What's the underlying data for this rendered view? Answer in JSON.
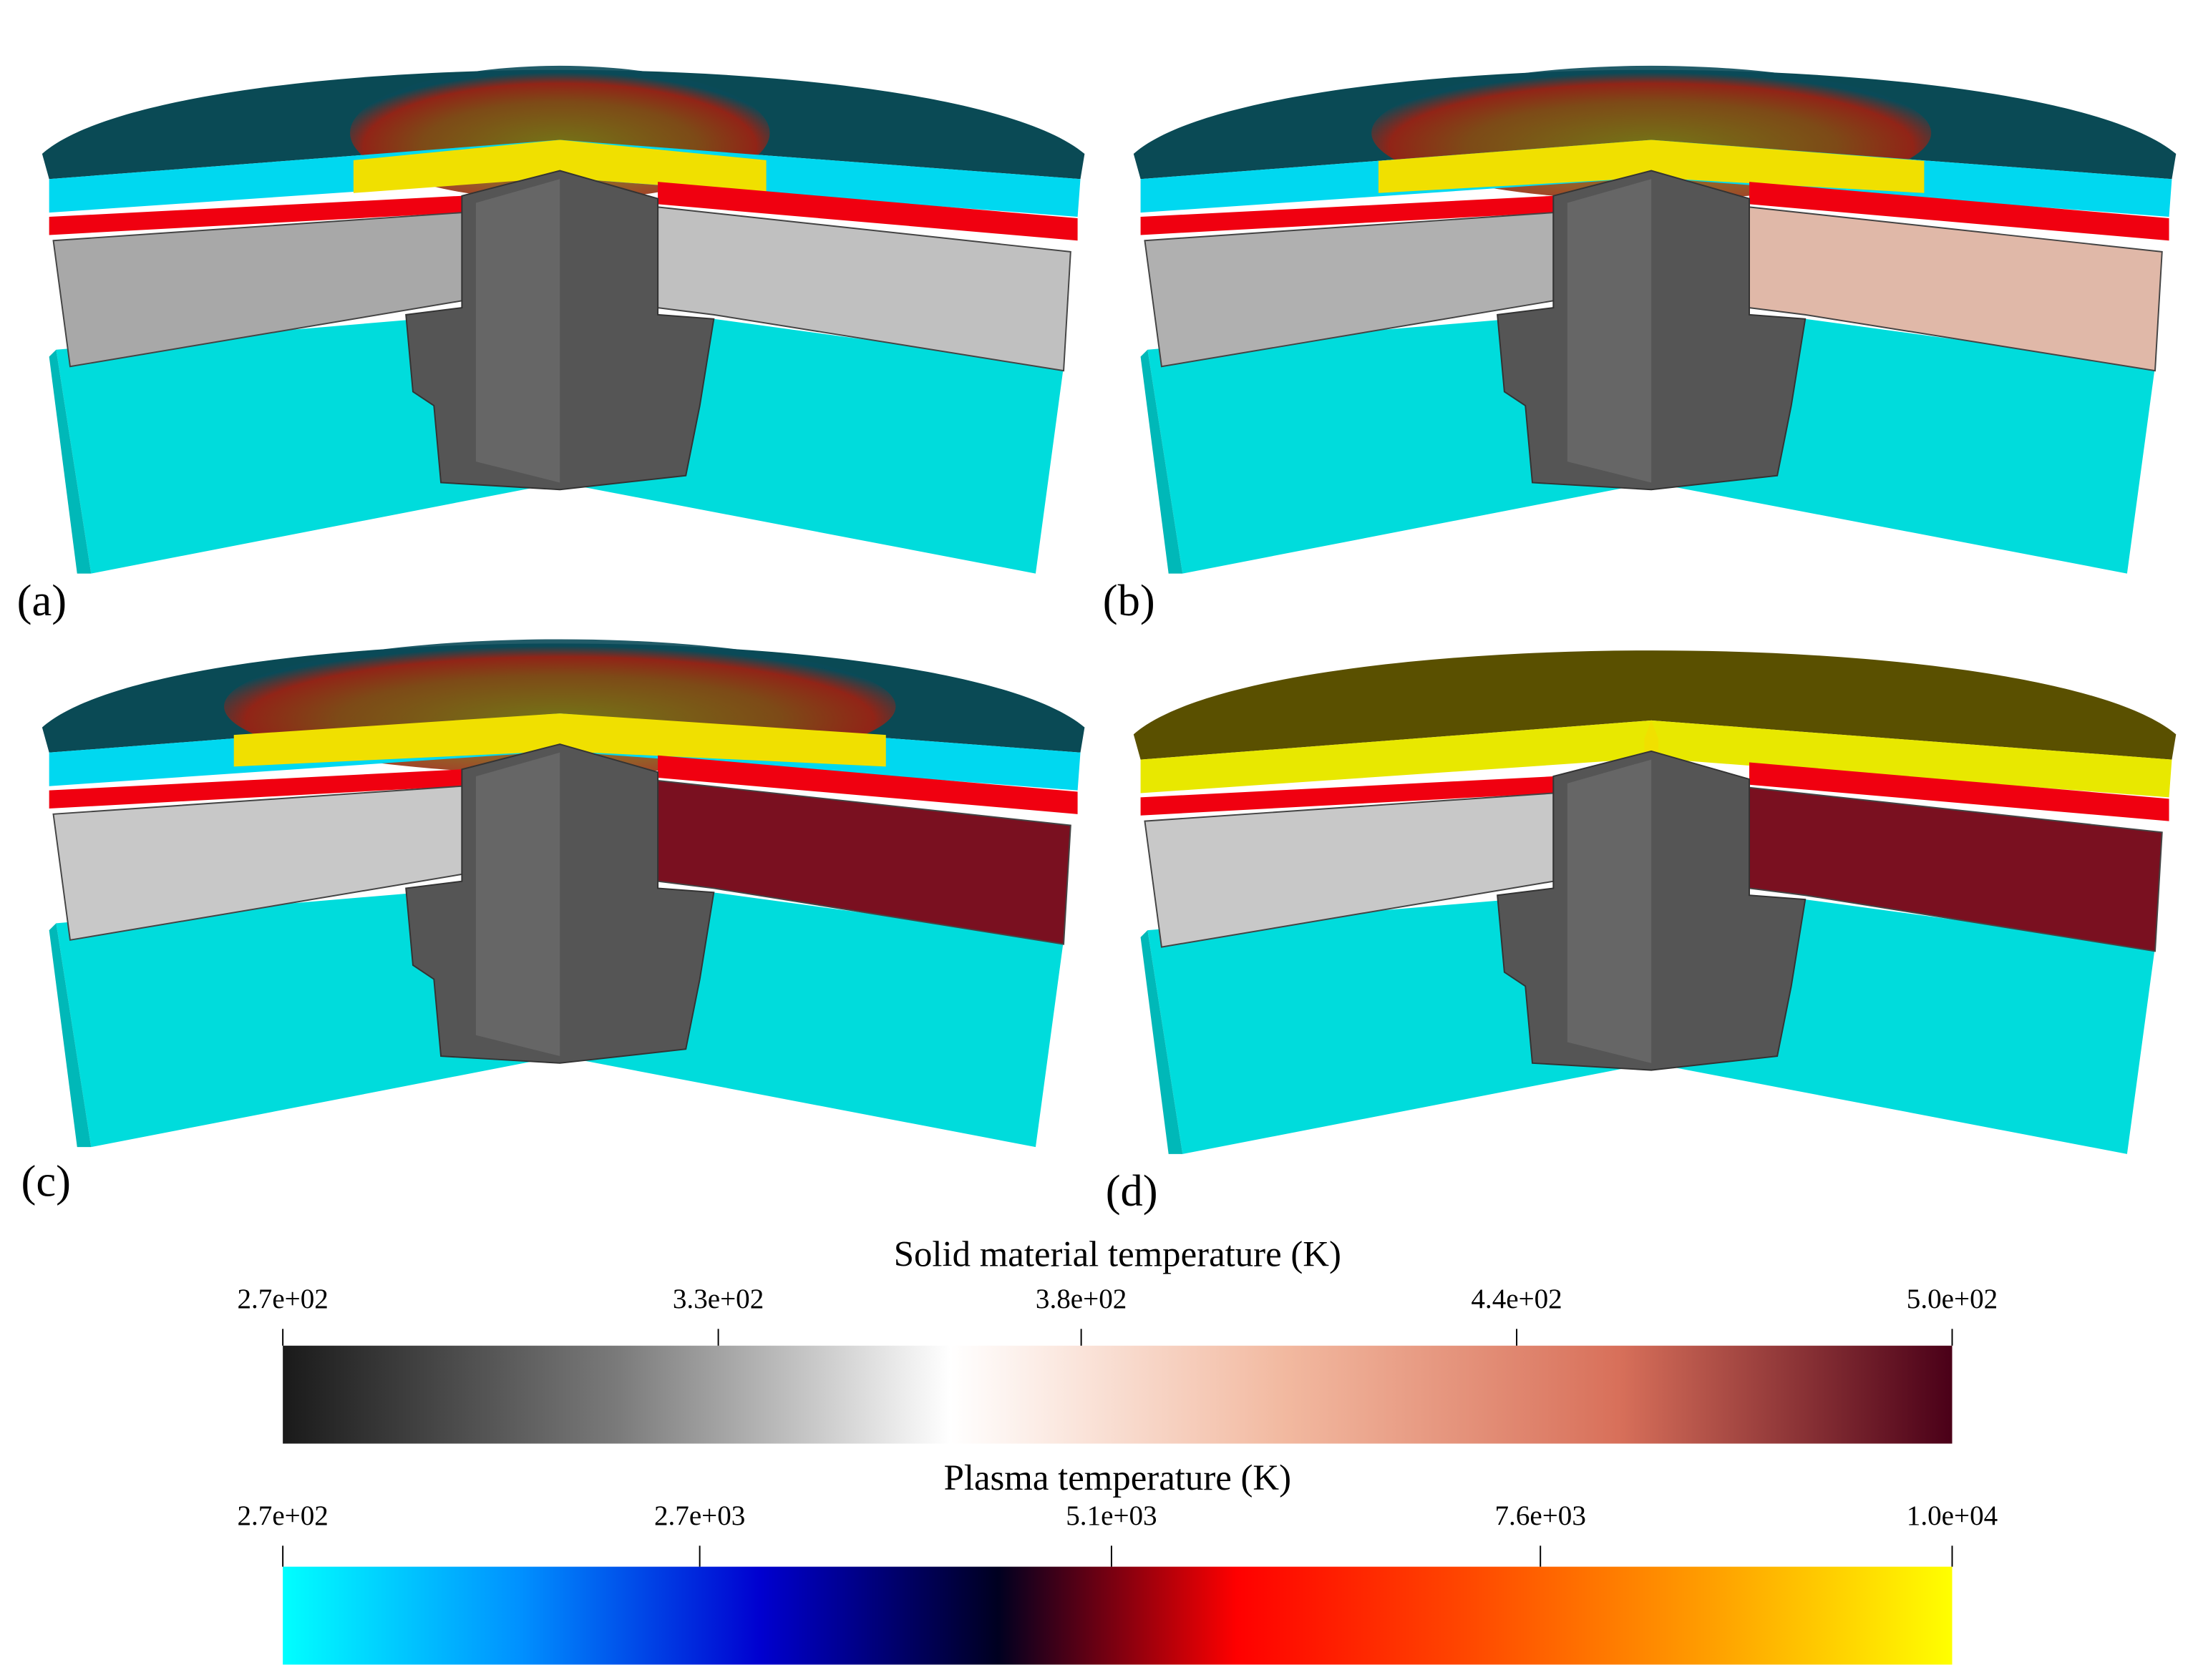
{
  "panels": [
    {
      "label": "(a)"
    },
    {
      "label": "(b)"
    },
    {
      "label": "(c)"
    },
    {
      "label": "(d)"
    }
  ],
  "colorbars": [
    {
      "title": "Solid material temperature (K)",
      "range": [
        270,
        500
      ],
      "ticks": [
        {
          "value": 270,
          "label": "2.7e+02"
        },
        {
          "value": 330,
          "label": "3.3e+02"
        },
        {
          "value": 380,
          "label": "3.8e+02"
        },
        {
          "value": 440,
          "label": "4.4e+02"
        },
        {
          "value": 500,
          "label": "5.0e+02"
        }
      ],
      "colors": [
        "#1a1a1a",
        "#7a7a7a",
        "#ffffff",
        "#f2b9a0",
        "#d8705a",
        "#4a0018"
      ]
    },
    {
      "title": "Plasma temperature (K)",
      "range": [
        270,
        10000
      ],
      "ticks": [
        {
          "value": 270,
          "label": "2.7e+02"
        },
        {
          "value": 2700,
          "label": "2.7e+03"
        },
        {
          "value": 5100,
          "label": "5.1e+03"
        },
        {
          "value": 7600,
          "label": "7.6e+03"
        },
        {
          "value": 10000,
          "label": "1.0e+04"
        }
      ],
      "colors": [
        "#00ffff",
        "#0090ff",
        "#0000d0",
        "#000020",
        "#ff0000",
        "#ff4a00",
        "#ffa000",
        "#ffff00"
      ]
    }
  ]
}
